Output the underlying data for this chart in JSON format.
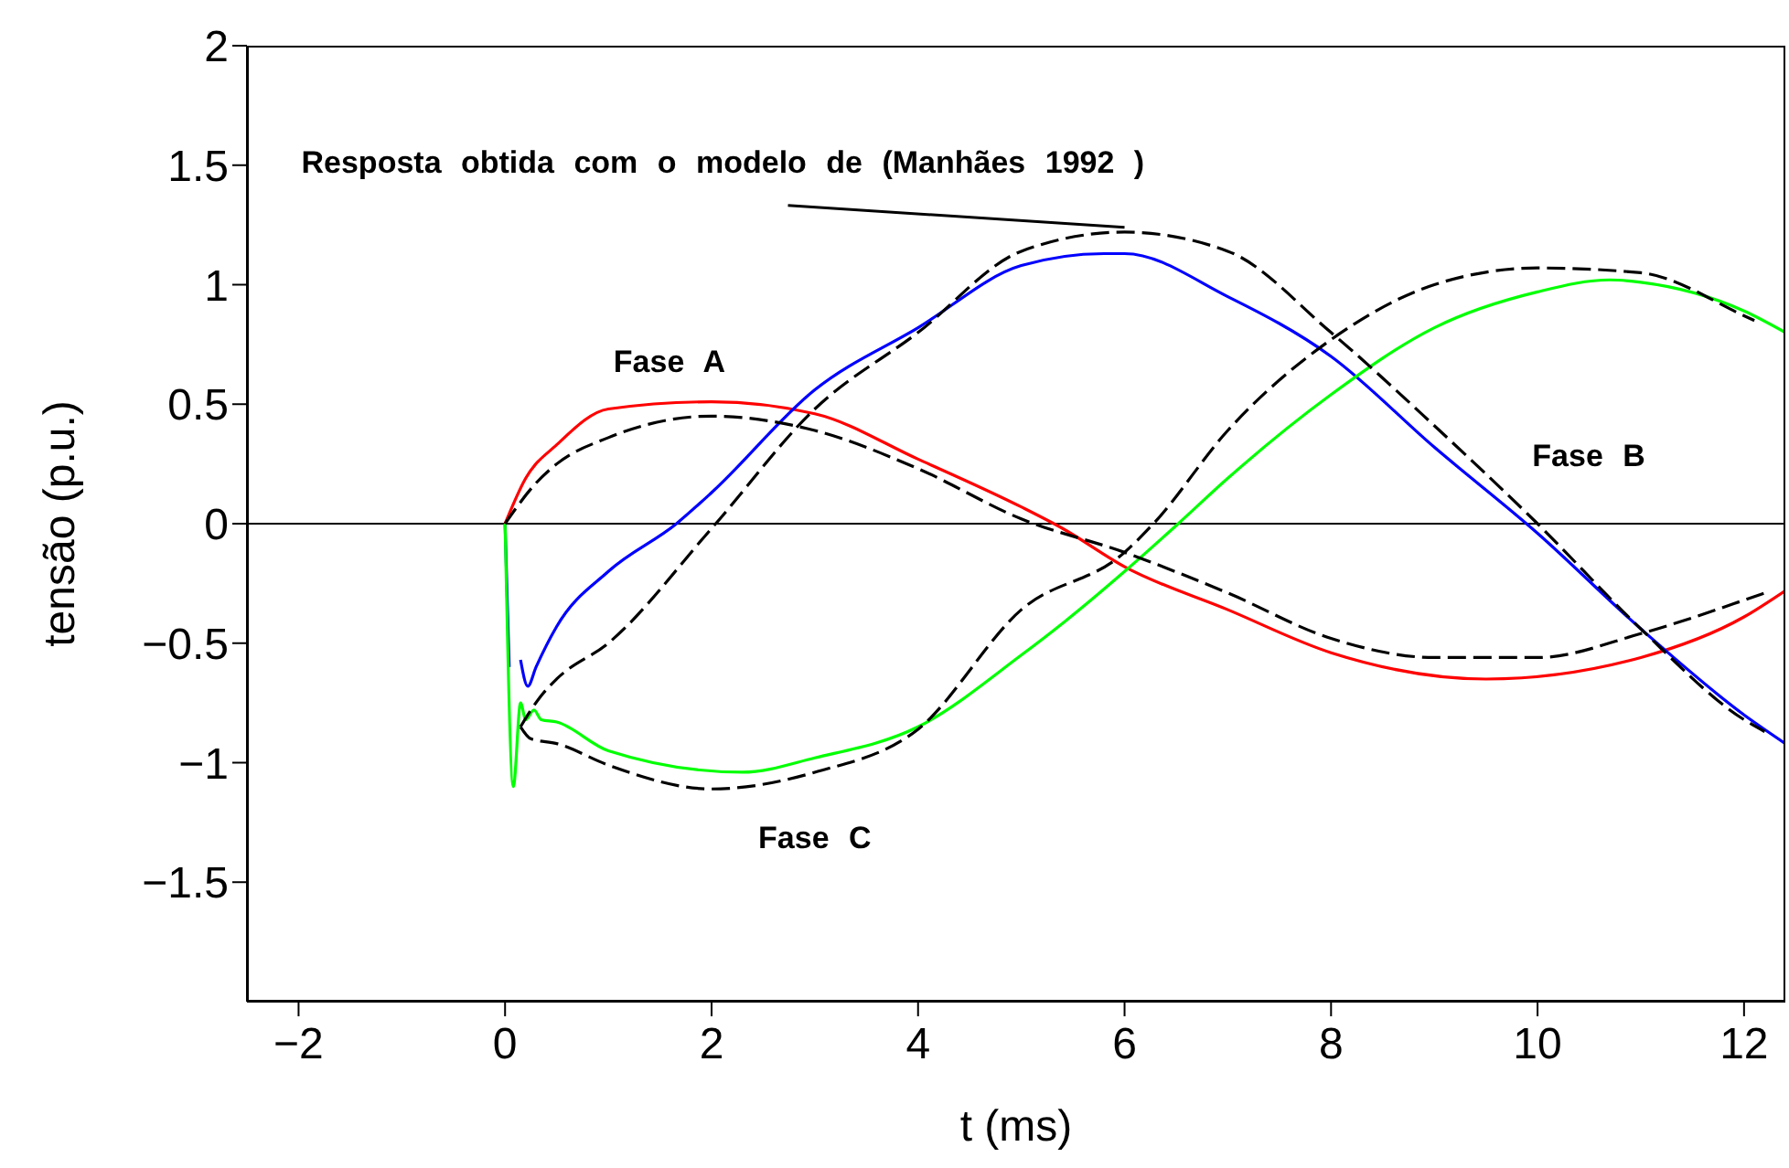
{
  "chart_data": {
    "type": "line",
    "xlabel": "t (ms)",
    "ylabel": "tensão (p.u.)",
    "xlim": [
      -2.5,
      12.4
    ],
    "ylim": [
      -2,
      2
    ],
    "xticks": [
      {
        "value": -2,
        "label": "−2"
      },
      0,
      2,
      4,
      6,
      8,
      10,
      12
    ],
    "yticks": [
      {
        "value": -1.5,
        "label": "−1.5"
      },
      {
        "value": -1,
        "label": "−1"
      },
      {
        "value": -0.5,
        "label": "−0.5"
      },
      0,
      0.5,
      1,
      1.5,
      2
    ],
    "grid": false,
    "legend": false,
    "marker": "none",
    "ref_lines": [
      {
        "axis": "y",
        "value": 0,
        "color": "#000000"
      }
    ],
    "annotations": [
      {
        "text": "Resposta obtida com o modelo de (Manhães 1992 )",
        "x": 6,
        "y": 1.24
      }
    ],
    "series": [
      {
        "name": "Fase A",
        "color": "#ff0000",
        "line_style": "solid",
        "x": [
          0,
          0.2,
          0.5,
          1,
          2,
          3,
          4,
          5,
          5.4,
          6,
          7,
          8,
          9.5,
          11,
          12,
          12.4
        ],
        "values": [
          0,
          0.19,
          0.33,
          0.48,
          0.51,
          0.46,
          0.27,
          0.07,
          -0.02,
          -0.18,
          -0.36,
          -0.54,
          -0.65,
          -0.56,
          -0.39,
          -0.28
        ]
      },
      {
        "name": "Fase B",
        "color": "#0000ff",
        "line_style": "solid",
        "x": [
          0,
          0.04,
          0.08,
          0.15,
          0.22,
          0.3,
          0.5,
          1,
          1.66,
          2,
          3,
          4,
          5,
          5.8,
          6,
          7,
          8,
          9,
          10,
          11,
          12,
          12.4
        ],
        "values": [
          0,
          -0.6,
          null,
          -0.57,
          -0.68,
          -0.6,
          -0.43,
          -0.2,
          0,
          0.13,
          0.56,
          0.82,
          1.08,
          1.13,
          1.13,
          0.95,
          0.7,
          0.32,
          -0.04,
          -0.44,
          -0.8,
          -0.92
        ]
      },
      {
        "name": "Fase C",
        "color": "#00ff00",
        "line_style": "solid",
        "x": [
          0,
          0.08,
          0.15,
          0.2,
          0.28,
          0.35,
          0.5,
          1,
          2.3,
          3,
          4,
          5,
          5.42,
          6,
          6.52,
          7,
          8,
          9,
          10,
          10.7,
          11,
          12,
          12.4
        ],
        "values": [
          0,
          -1.1,
          -0.75,
          -0.82,
          -0.78,
          -0.82,
          -0.83,
          -0.95,
          -1.04,
          -0.98,
          -0.85,
          -0.55,
          -0.41,
          -0.2,
          0,
          0.19,
          0.54,
          0.82,
          0.97,
          1.02,
          1.01,
          0.89,
          0.8
        ]
      },
      {
        "color": "#000000",
        "line_style": "dashed",
        "x": [
          0,
          0.3,
          0.5,
          1,
          2,
          3,
          4,
          5,
          6,
          7,
          8,
          9,
          10,
          11,
          12,
          12.2
        ],
        "values": [
          0,
          0.17,
          0.25,
          0.36,
          0.45,
          0.39,
          0.23,
          0.02,
          -0.12,
          -0.29,
          -0.48,
          -0.56,
          -0.56,
          -0.46,
          -0.32,
          -0.29
        ]
      },
      {
        "color": "#000000",
        "line_style": "dashed",
        "x": [
          0.15,
          0.25,
          0.35,
          0.5,
          1,
          2,
          3,
          4,
          5,
          6,
          7,
          8,
          9,
          10,
          11,
          12,
          12.2
        ],
        "values": [
          -0.85,
          -0.78,
          -0.72,
          -0.65,
          -0.5,
          -0.02,
          0.48,
          0.8,
          1.14,
          1.22,
          1.14,
          0.8,
          0.41,
          0,
          -0.44,
          -0.82,
          -0.87
        ]
      },
      {
        "color": "#000000",
        "line_style": "dashed",
        "x": [
          0.15,
          0.25,
          0.5,
          1,
          2,
          3,
          4,
          5,
          6,
          6.28,
          7,
          8,
          9,
          10,
          11,
          12,
          12.1
        ],
        "values": [
          -0.85,
          -0.9,
          -0.92,
          -1.01,
          -1.11,
          -1.04,
          -0.86,
          -0.36,
          -0.12,
          0,
          0.39,
          0.77,
          1,
          1.07,
          1.05,
          0.87,
          0.85
        ]
      }
    ]
  }
}
